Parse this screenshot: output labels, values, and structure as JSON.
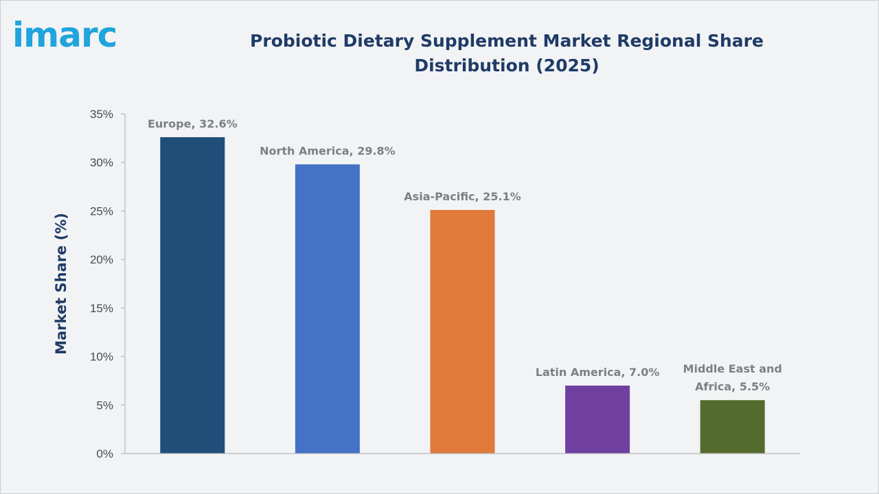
{
  "logo": {
    "text": "imarc"
  },
  "chart_data": {
    "type": "bar",
    "title": "Probiotic Dietary Supplement Market Regional Share Distribution (2025)",
    "xlabel": "",
    "ylabel": "Market Share (%)",
    "ylim": [
      0,
      35
    ],
    "ytick_step": 5,
    "ytick_suffix": "%",
    "grid": false,
    "categories": [
      "Europe",
      "North America",
      "Asia-Pacific",
      "Latin America",
      "Middle East and Africa"
    ],
    "values": [
      32.6,
      29.8,
      25.1,
      7.0,
      5.5
    ],
    "data_labels": [
      [
        "Europe, 32.6%"
      ],
      [
        "North America, 29.8%"
      ],
      [
        "Asia-Pacific, 25.1%"
      ],
      [
        "Latin America, 7.0%"
      ],
      [
        "Middle East and",
        "Africa, 5.5%"
      ]
    ],
    "colors": [
      "#1f4e79",
      "#4472c4",
      "#e07a3b",
      "#7040a0",
      "#546b2e"
    ]
  }
}
